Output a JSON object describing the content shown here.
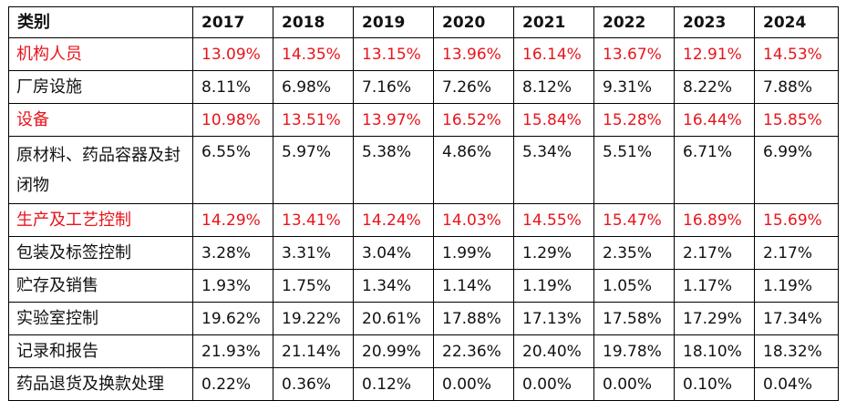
{
  "table": {
    "header": {
      "category": "类别",
      "years": [
        "2017",
        "2018",
        "2019",
        "2020",
        "2021",
        "2022",
        "2023",
        "2024"
      ]
    },
    "highlight_color": "#e8141b",
    "rows": [
      {
        "category": "机构人员",
        "highlight": true,
        "values": [
          "13.09%",
          "14.35%",
          "13.15%",
          "13.96%",
          "16.14%",
          "13.67%",
          "12.91%",
          "14.53%"
        ]
      },
      {
        "category": "厂房设施",
        "highlight": false,
        "values": [
          "8.11%",
          "6.98%",
          "7.16%",
          "7.26%",
          "8.12%",
          "9.31%",
          "8.22%",
          "7.88%"
        ]
      },
      {
        "category": "设备",
        "highlight": true,
        "values": [
          "10.98%",
          "13.51%",
          "13.97%",
          "16.52%",
          "15.84%",
          "15.28%",
          "16.44%",
          "15.85%"
        ]
      },
      {
        "category": "原材料、药品容器及封闭物",
        "highlight": false,
        "values": [
          "6.55%",
          "5.97%",
          "5.38%",
          "4.86%",
          "5.34%",
          "5.51%",
          "6.71%",
          "6.99%"
        ]
      },
      {
        "category": "生产及工艺控制",
        "highlight": true,
        "values": [
          "14.29%",
          "13.41%",
          "14.24%",
          "14.03%",
          "14.55%",
          "15.47%",
          "16.89%",
          "15.69%"
        ]
      },
      {
        "category": "包装及标签控制",
        "highlight": false,
        "values": [
          "3.28%",
          "3.31%",
          "3.04%",
          "1.99%",
          "1.29%",
          "2.35%",
          "2.17%",
          "2.17%"
        ]
      },
      {
        "category": "贮存及销售",
        "highlight": false,
        "values": [
          "1.93%",
          "1.75%",
          "1.34%",
          "1.14%",
          "1.19%",
          "1.05%",
          "1.17%",
          "1.19%"
        ]
      },
      {
        "category": "实验室控制",
        "highlight": false,
        "values": [
          "19.62%",
          "19.22%",
          "20.61%",
          "17.88%",
          "17.13%",
          "17.58%",
          "17.29%",
          "17.34%"
        ]
      },
      {
        "category": "记录和报告",
        "highlight": false,
        "values": [
          "21.93%",
          "21.14%",
          "20.99%",
          "22.36%",
          "20.40%",
          "19.78%",
          "18.10%",
          "18.32%"
        ]
      },
      {
        "category": "药品退货及换款处理",
        "highlight": false,
        "values": [
          "0.22%",
          "0.36%",
          "0.12%",
          "0.00%",
          "0.00%",
          "0.00%",
          "0.10%",
          "0.04%"
        ]
      }
    ]
  }
}
